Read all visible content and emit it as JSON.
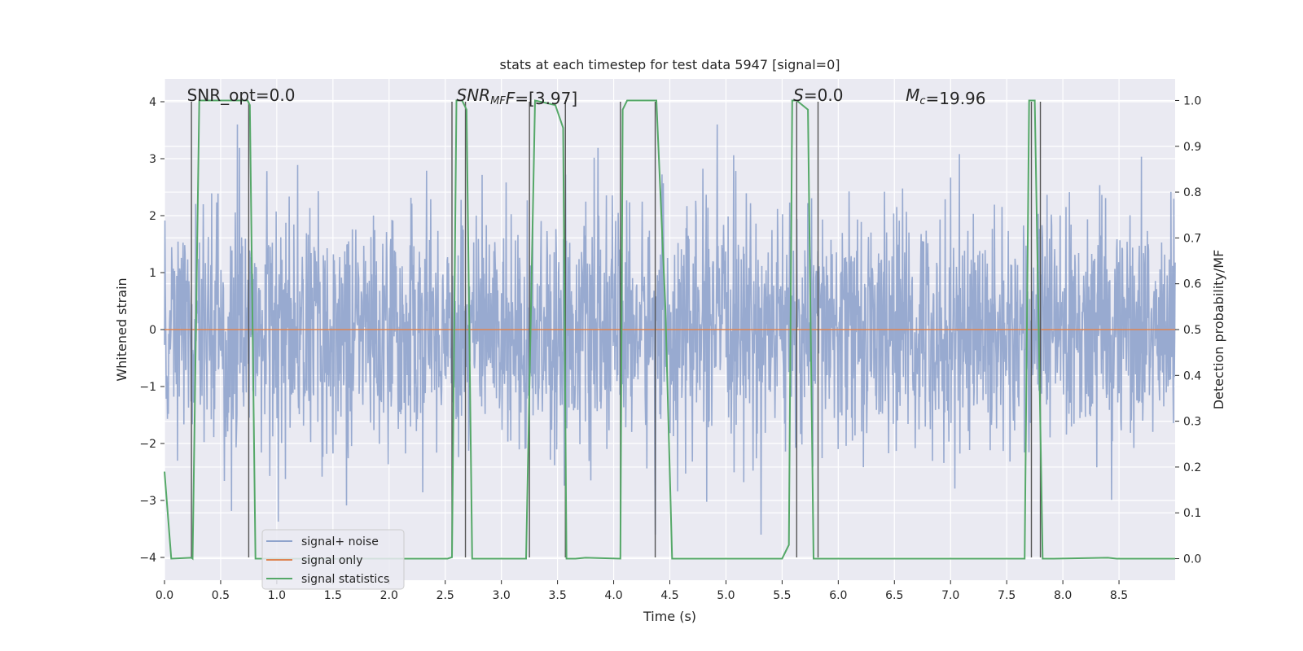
{
  "chart_data": {
    "type": "line",
    "title": "stats at each timestep for test data 5947 [signal=0]",
    "xlabel": "Time (s)",
    "ylabel": "Whitened strain",
    "y2label": "Detection probability/MF",
    "xlim": [
      0,
      9.0
    ],
    "ylim": [
      -4.4,
      4.4
    ],
    "y2lim": [
      -0.047,
      1.047
    ],
    "xticks": [
      0.0,
      0.5,
      1.0,
      1.5,
      2.0,
      2.5,
      3.0,
      3.5,
      4.0,
      4.5,
      5.0,
      5.5,
      6.0,
      6.5,
      7.0,
      7.5,
      8.0,
      8.5
    ],
    "xtick_labels": [
      "0.0",
      "0.5",
      "1.0",
      "1.5",
      "2.0",
      "2.5",
      "3.0",
      "3.5",
      "4.0",
      "4.5",
      "5.0",
      "5.5",
      "6.0",
      "6.5",
      "7.0",
      "7.5",
      "8.0",
      "8.5"
    ],
    "yticks": [
      -4,
      -3,
      -2,
      -1,
      0,
      1,
      2,
      3,
      4
    ],
    "ytick_labels": [
      "−4",
      "−3",
      "−2",
      "−1",
      "0",
      "1",
      "2",
      "3",
      "4"
    ],
    "y2ticks": [
      0.0,
      0.1,
      0.2,
      0.3,
      0.4,
      0.5,
      0.6,
      0.7,
      0.8,
      0.9,
      1.0
    ],
    "y2tick_labels": [
      "0.0",
      "0.1",
      "0.2",
      "0.3",
      "0.4",
      "0.5",
      "0.6",
      "0.7",
      "0.8",
      "0.9",
      "1.0"
    ],
    "grid": true,
    "legend": {
      "location": "lower-left",
      "entries": [
        {
          "label": "signal+ noise",
          "color": "#8fa3cc"
        },
        {
          "label": "signal only",
          "color": "#dd8452"
        },
        {
          "label": "signal statistics",
          "color": "#55a868"
        }
      ]
    },
    "annotations": [
      {
        "parts": [
          {
            "t": "SNR_opt=0.0",
            "i": false
          }
        ],
        "x": 0.2
      },
      {
        "parts": [
          {
            "t": "SNR",
            "i": true
          },
          {
            "t": "MF",
            "i": true,
            "sub": true
          },
          {
            "t": "F",
            "i": true
          },
          {
            "t": "=[3.97]",
            "i": false
          }
        ],
        "x": 2.6
      },
      {
        "parts": [
          {
            "t": "S",
            "i": true
          },
          {
            "t": "=0.0",
            "i": false
          }
        ],
        "x": 5.6
      },
      {
        "parts": [
          {
            "t": "M",
            "i": true
          },
          {
            "t": "c",
            "i": true,
            "sub": true
          },
          {
            "t": "=19.96",
            "i": false
          }
        ],
        "x": 6.6
      }
    ],
    "series": [
      {
        "name": "signal+ noise",
        "axis": "left",
        "description": "whitened strain, noise only, approx. gaussian band within about ±2.3 with spikes to ±3.6",
        "amplitude_core": 2.3,
        "amplitude_peak": 3.6
      },
      {
        "name": "signal only",
        "axis": "left",
        "x": [
          0.0,
          9.0
        ],
        "y": [
          0.0,
          0.0
        ]
      },
      {
        "name": "signal statistics",
        "axis": "right",
        "x": [
          0.0,
          0.06,
          0.24,
          0.25,
          0.31,
          0.74,
          0.76,
          0.81,
          2.52,
          2.56,
          2.6,
          2.65,
          2.69,
          2.74,
          3.19,
          3.22,
          3.3,
          3.48,
          3.55,
          3.58,
          3.66,
          3.75,
          4.06,
          4.08,
          4.12,
          4.18,
          4.38,
          4.46,
          4.52,
          5.5,
          5.56,
          5.59,
          5.63,
          5.73,
          5.78,
          5.85,
          7.6,
          7.66,
          7.7,
          7.75,
          7.82,
          7.92,
          8.4,
          8.48,
          9.0
        ],
        "y": [
          0.19,
          0.0,
          0.002,
          0.0,
          1.0,
          1.0,
          0.99,
          0.0,
          0.0,
          0.003,
          1.0,
          1.0,
          0.98,
          0.0,
          0.0,
          0.0,
          1.0,
          0.99,
          0.94,
          0.0,
          0.0,
          0.002,
          0.0,
          0.98,
          1.0,
          1.0,
          1.0,
          0.55,
          0.0,
          0.0,
          0.03,
          1.0,
          1.0,
          0.98,
          0.0,
          0.0,
          0.0,
          0.0,
          1.0,
          1.0,
          0.0,
          0.0,
          0.002,
          0.0,
          0.0
        ]
      }
    ],
    "vertical_markers": [
      0.24,
      0.75,
      2.56,
      2.68,
      3.25,
      3.57,
      4.06,
      4.37,
      5.63,
      5.82,
      7.72,
      7.8
    ]
  }
}
